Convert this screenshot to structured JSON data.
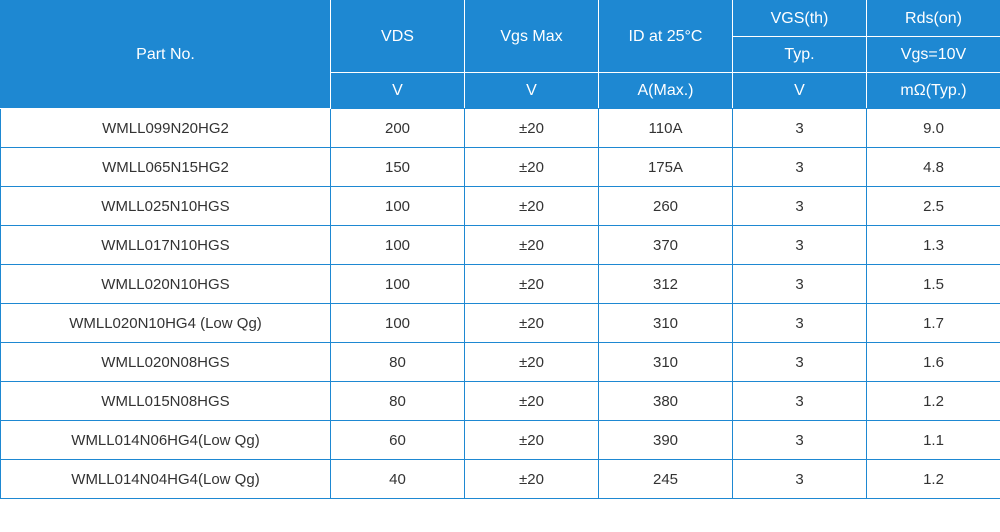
{
  "table": {
    "header_bg": "#1e88d2",
    "header_fg": "#ffffff",
    "border_color": "#1e88d2",
    "inner_header_border": "#ffffff",
    "body_fg": "#333333",
    "font_family": "Segoe UI, Arial, sans-serif",
    "header_fontsize": 16,
    "body_fontsize": 15,
    "columns": {
      "part_no": {
        "label": "Part No.",
        "unit": ""
      },
      "vds": {
        "label": "VDS",
        "unit": "V"
      },
      "vgs_max": {
        "label": "Vgs Max",
        "unit": "V"
      },
      "id_25c": {
        "label": "ID at 25°C",
        "unit": "A(Max.)"
      },
      "vgs_th": {
        "label": "VGS(th)",
        "sub": "Typ.",
        "unit": "V"
      },
      "rds_on": {
        "label": "Rds(on)",
        "sub": "Vgs=10V",
        "unit": "mΩ(Typ.)"
      }
    },
    "rows": [
      {
        "part": "WMLL099N20HG2",
        "vds": "200",
        "vgs": "±20",
        "id": "110A",
        "vth": "3",
        "rds": "9.0"
      },
      {
        "part": "WMLL065N15HG2",
        "vds": "150",
        "vgs": "±20",
        "id": "175A",
        "vth": "3",
        "rds": "4.8"
      },
      {
        "part": "WMLL025N10HGS",
        "vds": "100",
        "vgs": "±20",
        "id": "260",
        "vth": "3",
        "rds": "2.5"
      },
      {
        "part": "WMLL017N10HGS",
        "vds": "100",
        "vgs": "±20",
        "id": "370",
        "vth": "3",
        "rds": "1.3"
      },
      {
        "part": "WMLL020N10HGS",
        "vds": "100",
        "vgs": "±20",
        "id": "312",
        "vth": "3",
        "rds": "1.5"
      },
      {
        "part": "WMLL020N10HG4 (Low Qg)",
        "vds": "100",
        "vgs": "±20",
        "id": "310",
        "vth": "3",
        "rds": "1.7"
      },
      {
        "part": "WMLL020N08HGS",
        "vds": "80",
        "vgs": "±20",
        "id": "310",
        "vth": "3",
        "rds": "1.6"
      },
      {
        "part": "WMLL015N08HGS",
        "vds": "80",
        "vgs": "±20",
        "id": "380",
        "vth": "3",
        "rds": "1.2"
      },
      {
        "part": "WMLL014N06HG4(Low Qg)",
        "vds": "60",
        "vgs": "±20",
        "id": "390",
        "vth": "3",
        "rds": "1.1"
      },
      {
        "part": "WMLL014N04HG4(Low Qg)",
        "vds": "40",
        "vgs": "±20",
        "id": "245",
        "vth": "3",
        "rds": "1.2"
      }
    ]
  }
}
